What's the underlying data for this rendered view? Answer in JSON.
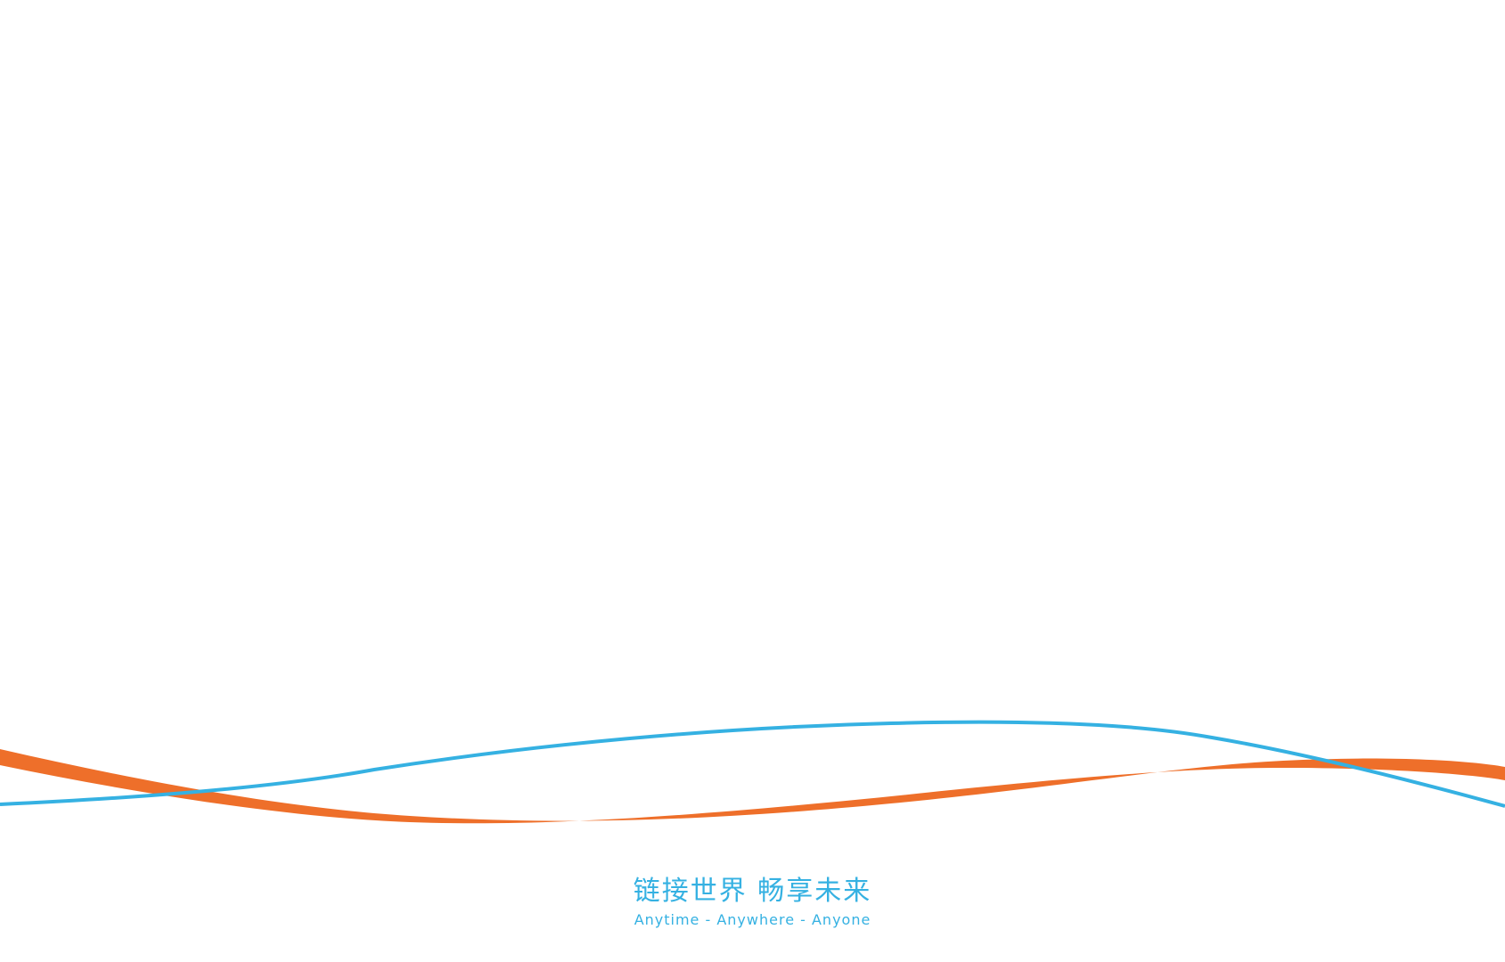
{
  "slogan": {
    "chinese": "链接世界  畅享未来",
    "english": "Anytime  -  Anywhere  -  Anyone"
  },
  "colors": {
    "background": "#ffffff",
    "blue_wave": "#35b1e2",
    "orange_wave": "#ee6f2a",
    "slogan_text": "#35b1e2"
  }
}
